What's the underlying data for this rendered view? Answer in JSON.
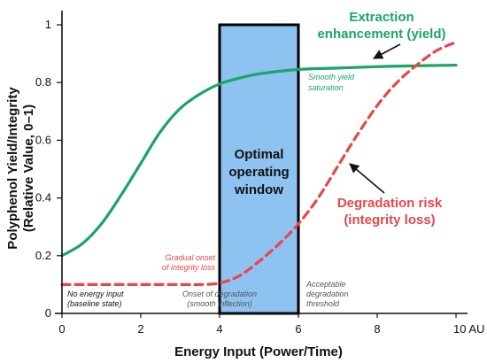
{
  "chart_data": {
    "type": "line",
    "xlabel": "Energy Input (Power/Time)",
    "ylabel_line1": "Polyphenol Yield/Integrity",
    "ylabel_line2": "(Relative Value, 0–1)",
    "xlim": [
      0,
      10
    ],
    "ylim": [
      0,
      1
    ],
    "x_ticks": [
      "0",
      "2",
      "4",
      "6",
      "8",
      "10 AU"
    ],
    "y_ticks": [
      "0",
      "0.2",
      "0.4",
      "0.6",
      "0.8",
      "1"
    ],
    "grid": false,
    "colors": {
      "yield": "#1aa566",
      "risk": "#e8474a",
      "window_fill": "#8ec2f0",
      "window_stroke": "#000000"
    },
    "series": [
      {
        "name": "Extraction enhancement (yield)",
        "style": "solid",
        "x": [
          0,
          0.5,
          1,
          1.5,
          2,
          2.5,
          3,
          3.5,
          4,
          4.5,
          5,
          6,
          7,
          8,
          9,
          10
        ],
        "y": [
          0.2,
          0.24,
          0.31,
          0.41,
          0.52,
          0.63,
          0.71,
          0.76,
          0.795,
          0.815,
          0.83,
          0.845,
          0.85,
          0.855,
          0.858,
          0.86
        ]
      },
      {
        "name": "Degradation risk (integrity loss)",
        "style": "dashed",
        "x": [
          0,
          1,
          2,
          3,
          3.5,
          4,
          4.5,
          5,
          5.5,
          6,
          6.5,
          7,
          7.5,
          8,
          8.5,
          9,
          9.5,
          10
        ],
        "y": [
          0.1,
          0.1,
          0.1,
          0.1,
          0.1,
          0.105,
          0.13,
          0.18,
          0.24,
          0.31,
          0.4,
          0.51,
          0.62,
          0.72,
          0.8,
          0.86,
          0.91,
          0.94
        ]
      }
    ],
    "window": {
      "x_start": 4,
      "x_end": 6,
      "label": [
        "Optimal",
        "operating",
        "window"
      ]
    },
    "annotations": {
      "yield_title": [
        "Extraction",
        "enhancement (yield)"
      ],
      "risk_title": [
        "Degradation risk",
        "(integrity loss)"
      ],
      "smooth_sat": [
        "Smooth yield",
        "saturation"
      ],
      "gradual_onset": [
        "Gradual onset",
        "of integrity loss"
      ],
      "no_energy": [
        "No energy input",
        "(baseline state)"
      ],
      "onset_deg": [
        "Onset of degradation",
        "(smooth inflection)"
      ],
      "acceptable": [
        "Acceptable",
        "degradation",
        "threshold"
      ]
    }
  }
}
